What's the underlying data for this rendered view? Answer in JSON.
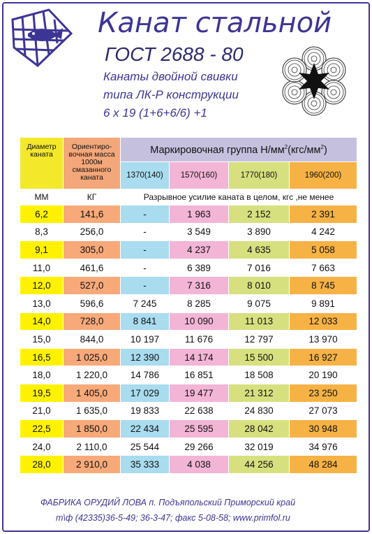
{
  "title": "Канат стальной",
  "gost": "ГОСТ 2688 - 80",
  "subtitle_lines": [
    "Канаты двойной свивки",
    "типа ЛК-Р конструкции",
    "6 х 19 (1+6+6/6) +1"
  ],
  "table": {
    "col_diameter": "Диаметр каната",
    "col_mass": "Ориентиро-вочная масса 1000м смазанного каната",
    "mark_group_prefix": "Маркировочная группа Н/мм",
    "mark_group_sup1": "2",
    "mark_group_mid": "(кгс/мм",
    "mark_group_sup2": "2",
    "mark_group_end": ")",
    "groups": [
      "1370(140)",
      "1570(160)",
      "1770(180)",
      "1960(200)"
    ],
    "unit_diameter": "ММ",
    "unit_mass": "КГ",
    "force_note": "Разрывное усилие каната в целом, кгс ,не менее",
    "rows": [
      [
        "6,2",
        "141,6",
        "-",
        "1 963",
        "2 152",
        "2 391"
      ],
      [
        "8,3",
        "256,0",
        "-",
        "3 549",
        "3 890",
        "4 242"
      ],
      [
        "9,1",
        "305,0",
        "-",
        "4 237",
        "4 635",
        "5 058"
      ],
      [
        "11,0",
        "461,6",
        "-",
        "6 389",
        "7 016",
        "7 663"
      ],
      [
        "12,0",
        "527,0",
        "-",
        "7 316",
        "8 010",
        "8 745"
      ],
      [
        "13,0",
        "596,6",
        "7 245",
        "8 285",
        "9 075",
        "9 891"
      ],
      [
        "14,0",
        "728,0",
        "8 841",
        "10 090",
        "11 013",
        "12 033"
      ],
      [
        "15,0",
        "844,0",
        "10 197",
        "11 676",
        "12 797",
        "13 970"
      ],
      [
        "16,5",
        "1 025,0",
        "12 390",
        "14 174",
        "15 500",
        "16 927"
      ],
      [
        "18,0",
        "1 220,0",
        "14 786",
        "16 851",
        "18 508",
        "20 190"
      ],
      [
        "19,5",
        "1 405,0",
        "17 029",
        "19 477",
        "21 312",
        "23 250"
      ],
      [
        "21,0",
        "1 635,0",
        "19 833",
        "22 638",
        "24 830",
        "27 073"
      ],
      [
        "22,5",
        "1 850,0",
        "22 434",
        "25 595",
        "28 042",
        "30 948"
      ],
      [
        "24,0",
        "2 110,0",
        "25 544",
        "29 266",
        "32 019",
        "34 976"
      ],
      [
        "28,0",
        "2 910,0",
        "35 333",
        "4 038",
        "44 256",
        "48 284"
      ]
    ]
  },
  "footer": {
    "line1": "ФАБРИКА ОРУДИЙ ЛОВА п. Подъяпольский Приморский край",
    "line2": "т\\ф (42335)36-5-49; 36-3-47; факс 5-08-58; www.primfol.ru"
  },
  "colors": {
    "brand": "#3d3596",
    "yellow": "#fff200",
    "orange": "#f7a97a",
    "blue": "#a9dcef",
    "pink": "#f3b5d6",
    "green": "#d7e07f",
    "amber": "#f6b245"
  },
  "icons": [
    "fish-net-logo-icon",
    "rope-cross-section-icon"
  ]
}
